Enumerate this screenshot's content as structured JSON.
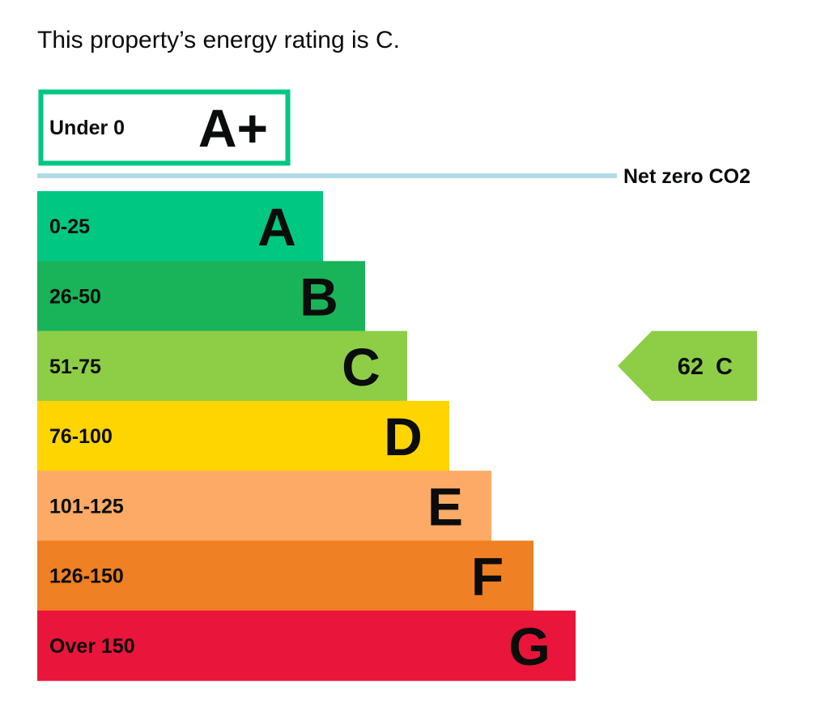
{
  "headline": "This property’s energy rating is C.",
  "chart_data": {
    "type": "bar",
    "top_band": {
      "range": "Under 0",
      "letter": "A+",
      "color": "#00c781"
    },
    "net_zero_label": "Net zero CO2",
    "net_zero_color": "#b1dae4",
    "categories": [
      "A",
      "B",
      "C",
      "D",
      "E",
      "F",
      "G"
    ],
    "ranges": [
      "0-25",
      "26-50",
      "51-75",
      "76-100",
      "101-125",
      "126-150",
      "Over 150"
    ],
    "colors": [
      "#00c781",
      "#19b459",
      "#8dce46",
      "#ffd500",
      "#fcaa65",
      "#ef8023",
      "#e9153b"
    ],
    "current": {
      "score": "62",
      "letter": "C",
      "band_index": 2,
      "color": "#8dce46"
    }
  }
}
